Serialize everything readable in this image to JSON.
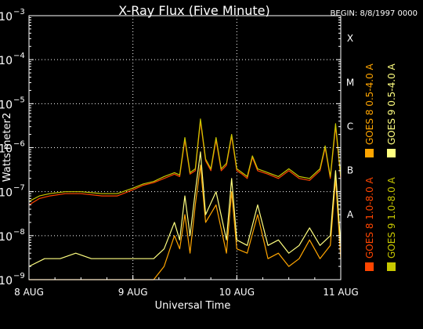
{
  "chart_data": {
    "type": "line",
    "title": "X-Ray Flux (Five Minute)",
    "begin_label": "BEGIN: 8/8/1997 0000",
    "xlabel": "Universal Time",
    "ylabel": "Watts meter2",
    "x_range_days": [
      0,
      3
    ],
    "x_ticks": [
      {
        "x": 0,
        "label": "8 AUG"
      },
      {
        "x": 1,
        "label": "9 AUG"
      },
      {
        "x": 2,
        "label": "10 AUG"
      },
      {
        "x": 3,
        "label": "11 AUG"
      }
    ],
    "y_scale": "log",
    "ylim": [
      1e-09,
      0.001
    ],
    "y_ticks": [
      {
        "value": 0.001,
        "label": "10",
        "exp": "−3"
      },
      {
        "value": 0.0001,
        "label": "10",
        "exp": "−4"
      },
      {
        "value": 1e-05,
        "label": "10",
        "exp": "−5"
      },
      {
        "value": 1e-06,
        "label": "10",
        "exp": "−6"
      },
      {
        "value": 1e-07,
        "label": "10",
        "exp": "−7"
      },
      {
        "value": 1e-08,
        "label": "10",
        "exp": "−8"
      },
      {
        "value": 1e-09,
        "label": "10",
        "exp": "−9"
      }
    ],
    "flare_classes": [
      {
        "label": "X",
        "value": 0.0001
      },
      {
        "label": "M",
        "value": 1e-05
      },
      {
        "label": "C",
        "value": 1e-06
      },
      {
        "label": "B",
        "value": 1e-07
      },
      {
        "label": "A",
        "value": 1e-08
      }
    ],
    "grid": "dotted",
    "legend_placement": "right",
    "series": [
      {
        "name": "GOES 8 1.0-8.0 A",
        "color": "#ff4500",
        "x": [
          0,
          0.1,
          0.2,
          0.35,
          0.5,
          0.7,
          0.85,
          1.0,
          1.1,
          1.2,
          1.3,
          1.4,
          1.45,
          1.5,
          1.55,
          1.6,
          1.65,
          1.7,
          1.75,
          1.8,
          1.85,
          1.9,
          1.95,
          2.0,
          2.05,
          2.1,
          2.15,
          2.2,
          2.3,
          2.4,
          2.5,
          2.6,
          2.7,
          2.8,
          2.85,
          2.9,
          2.95,
          3.0
        ],
        "y": [
          5e-08,
          7e-08,
          8e-08,
          9e-08,
          9e-08,
          8e-08,
          8e-08,
          1.1e-07,
          1.4e-07,
          1.6e-07,
          2e-07,
          2.5e-07,
          2.2e-07,
          1.5e-06,
          2.5e-07,
          3e-07,
          4e-06,
          5e-07,
          3e-07,
          1.5e-06,
          3e-07,
          4e-07,
          1.8e-06,
          3e-07,
          2.5e-07,
          2e-07,
          6e-07,
          3e-07,
          2.5e-07,
          2e-07,
          3e-07,
          2e-07,
          1.8e-07,
          3e-07,
          1e-06,
          2e-07,
          3e-06,
          2e-07
        ]
      },
      {
        "name": "GOES 8 0.5-4.0 A",
        "color": "#ffa500",
        "x": [
          0,
          0.2,
          0.4,
          0.6,
          0.8,
          1.0,
          1.2,
          1.3,
          1.4,
          1.45,
          1.5,
          1.55,
          1.6,
          1.65,
          1.7,
          1.8,
          1.9,
          1.95,
          2.0,
          2.1,
          2.2,
          2.3,
          2.4,
          2.5,
          2.6,
          2.7,
          2.8,
          2.9,
          2.95,
          3.0
        ],
        "y": [
          1e-09,
          1e-09,
          1e-09,
          1e-09,
          1e-09,
          1e-09,
          1e-09,
          2e-09,
          1e-08,
          5e-09,
          3e-08,
          4e-09,
          5e-08,
          4e-07,
          2e-08,
          5e-08,
          4e-09,
          1e-07,
          5e-09,
          4e-09,
          3e-08,
          3e-09,
          4e-09,
          2e-09,
          3e-09,
          8e-09,
          3e-09,
          6e-09,
          2e-07,
          3e-09
        ]
      },
      {
        "name": "GOES 9 1.0-8.0 A",
        "color": "#c8c800",
        "x": [
          0,
          0.1,
          0.2,
          0.35,
          0.5,
          0.7,
          0.85,
          1.0,
          1.1,
          1.2,
          1.3,
          1.4,
          1.45,
          1.5,
          1.55,
          1.6,
          1.65,
          1.7,
          1.75,
          1.8,
          1.85,
          1.9,
          1.95,
          2.0,
          2.05,
          2.1,
          2.15,
          2.2,
          2.3,
          2.4,
          2.5,
          2.6,
          2.7,
          2.8,
          2.85,
          2.9,
          2.95,
          3.0
        ],
        "y": [
          6e-08,
          8e-08,
          9e-08,
          1e-07,
          1e-07,
          9e-08,
          9e-08,
          1.2e-07,
          1.5e-07,
          1.7e-07,
          2.2e-07,
          2.7e-07,
          2.4e-07,
          1.7e-06,
          2.7e-07,
          3.3e-07,
          4.5e-06,
          5.5e-07,
          3.3e-07,
          1.7e-06,
          3.3e-07,
          4.4e-07,
          2e-06,
          3.3e-07,
          2.7e-07,
          2.2e-07,
          6.5e-07,
          3.3e-07,
          2.7e-07,
          2.2e-07,
          3.3e-07,
          2.2e-07,
          2e-07,
          3.3e-07,
          1.1e-06,
          2.2e-07,
          3.5e-06,
          2.2e-07
        ]
      },
      {
        "name": "GOES 9 0.5-4.0 A",
        "color": "#ffff80",
        "x": [
          0,
          0.15,
          0.3,
          0.45,
          0.6,
          0.75,
          0.9,
          1.0,
          1.2,
          1.3,
          1.4,
          1.45,
          1.5,
          1.55,
          1.6,
          1.65,
          1.7,
          1.8,
          1.9,
          1.95,
          2.0,
          2.1,
          2.2,
          2.3,
          2.4,
          2.5,
          2.6,
          2.7,
          2.8,
          2.9,
          2.95,
          3.0
        ],
        "y": [
          2e-09,
          3e-09,
          3e-09,
          4e-09,
          3e-09,
          3e-09,
          3e-09,
          3e-09,
          3e-09,
          5e-09,
          2e-08,
          8e-09,
          8e-08,
          1e-08,
          1e-07,
          8e-07,
          3e-08,
          1e-07,
          8e-09,
          2e-07,
          8e-09,
          6e-09,
          5e-08,
          6e-09,
          8e-09,
          4e-09,
          6e-09,
          1.5e-08,
          6e-09,
          1e-08,
          3e-07,
          6e-09
        ]
      }
    ]
  }
}
